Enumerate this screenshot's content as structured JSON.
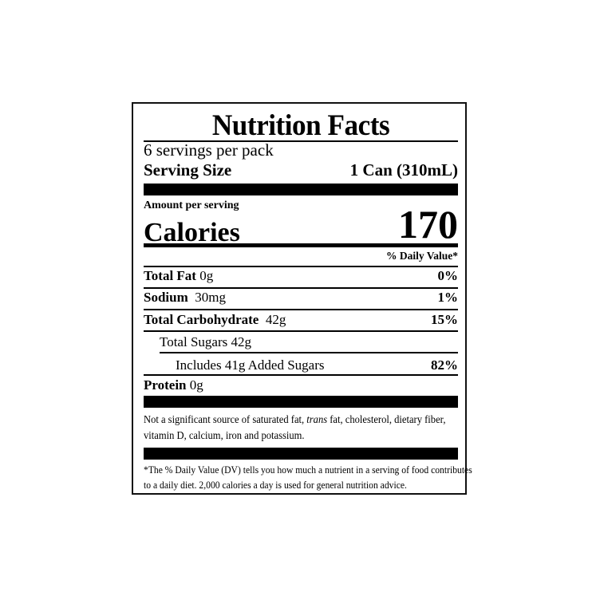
{
  "title": "Nutrition Facts",
  "servings_per_container": "6 servings per pack",
  "serving_size": {
    "label": "Serving Size",
    "value": "1 Can (310mL)"
  },
  "amount_per_serving": "Amount per serving",
  "calories": {
    "label": "Calories",
    "value": "170"
  },
  "dv_header": "% Daily Value*",
  "nutrients": [
    {
      "name": "Total Fat",
      "amount": "0g",
      "dv": "0%"
    },
    {
      "name": "Sodium",
      "amount": "30mg",
      "dv": "1%"
    },
    {
      "name": "Total Carbohydrate",
      "amount": "42g",
      "dv": "15%"
    },
    {
      "name": "Total Sugars 42g",
      "amount": "",
      "dv": ""
    },
    {
      "name": "Includes 41g Added Sugars",
      "amount": "",
      "dv": "82%"
    },
    {
      "name": "Protein",
      "amount": "0g",
      "dv": ""
    }
  ],
  "not_significant": {
    "before": "Not a significant source of saturated fat, ",
    "italic": "trans",
    "after": " fat, cholesterol, dietary fiber, vitamin D, calcium, iron and potassium."
  },
  "footnote": "*The % Daily Value (DV) tells you how much a nutrient in a serving of food contributes to a daily diet. 2,000 calories a day is used for general nutrition advice."
}
